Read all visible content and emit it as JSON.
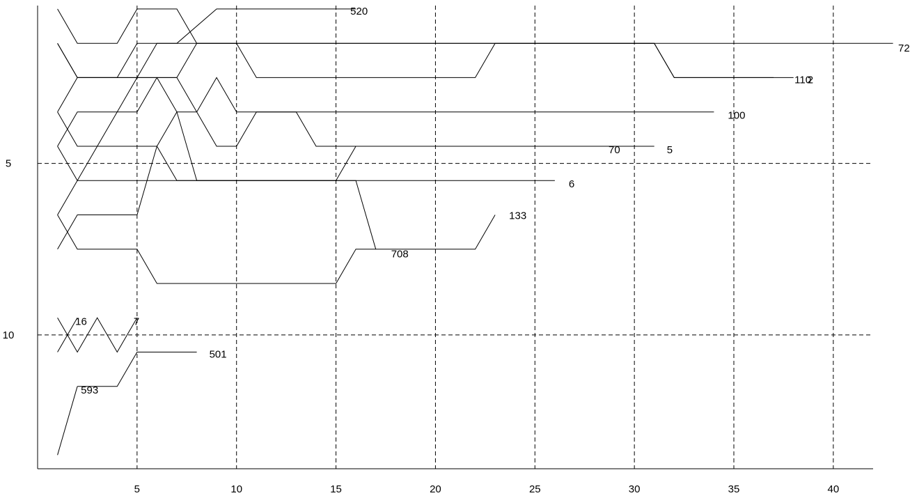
{
  "chart_data": {
    "type": "line",
    "title": "",
    "xlabel": "",
    "ylabel": "",
    "xlim": [
      0,
      42
    ],
    "ylim": [
      13.9,
      0.4
    ],
    "y_axis_inverted": true,
    "grid": "dashed",
    "x_ticks": [
      5,
      10,
      15,
      20,
      25,
      30,
      35,
      40
    ],
    "x_tick_labels": [
      "5",
      "10",
      "15",
      "20",
      "25",
      "30",
      "35",
      "40"
    ],
    "y_ticks": [
      5,
      10
    ],
    "y_tick_labels": [
      "5",
      "10"
    ],
    "series": [
      {
        "name": "72",
        "x": [
          1,
          2,
          4,
          5,
          7,
          8,
          43
        ],
        "y": [
          0.5,
          1.5,
          1.5,
          0.5,
          0.5,
          1.5,
          1.5
        ]
      },
      {
        "name": "520",
        "x": [
          1,
          2,
          4,
          5,
          7,
          9,
          11,
          13,
          14,
          15,
          16
        ],
        "y": [
          1.5,
          2.5,
          2.5,
          1.5,
          1.5,
          0.5,
          0.5,
          0.5,
          0.5,
          0.5,
          0.5
        ]
      },
      {
        "name": "2",
        "x": [
          1,
          2,
          7,
          8,
          31,
          32,
          38
        ],
        "y": [
          1.5,
          2.5,
          2.5,
          1.5,
          1.5,
          2.5,
          2.5
        ]
      },
      {
        "name": "110",
        "x": [
          1,
          2,
          5,
          6,
          10,
          11,
          22,
          23,
          31,
          32,
          37
        ],
        "y": [
          3.5,
          2.5,
          2.5,
          1.5,
          1.5,
          2.5,
          2.5,
          1.5,
          1.5,
          2.5,
          2.5
        ]
      },
      {
        "name": "100",
        "x": [
          1,
          2,
          4,
          5,
          6,
          7,
          8,
          9,
          10,
          11,
          22,
          23,
          34
        ],
        "y": [
          4.5,
          3.5,
          3.5,
          2.5,
          2.5,
          3.5,
          3.5,
          2.5,
          3.5,
          3.5,
          3.5,
          3.5,
          3.5
        ]
      },
      {
        "name": "5",
        "x": [
          1,
          2,
          3,
          4,
          5,
          6,
          7,
          8,
          9,
          10,
          11,
          13,
          14,
          15,
          16,
          17,
          22,
          23,
          31
        ],
        "y": [
          3.5,
          4.5,
          4.5,
          3.5,
          3.5,
          2.5,
          2.5,
          3.5,
          4.5,
          4.5,
          3.5,
          3.5,
          4.5,
          4.5,
          4.5,
          4.5,
          4.5,
          4.5,
          4.5
        ]
      },
      {
        "name": "70",
        "x": [
          1,
          2,
          3,
          5,
          6,
          7,
          8,
          15,
          16,
          22,
          23,
          28
        ],
        "y": [
          4.5,
          5.5,
          4.5,
          4.5,
          4.5,
          3.5,
          5.5,
          5.5,
          4.5,
          4.5,
          4.5,
          4.5
        ]
      },
      {
        "name": "6",
        "x": [
          1,
          2,
          3,
          5,
          6,
          7,
          15,
          16,
          22,
          23,
          26
        ],
        "y": [
          6.5,
          5.5,
          5.5,
          5.5,
          5.5,
          5.5,
          5.5,
          5.5,
          5.5,
          5.5,
          5.5
        ]
      },
      {
        "name": "708",
        "x": [
          1,
          2,
          5,
          6,
          7,
          8,
          15,
          16,
          17
        ],
        "y": [
          7.5,
          6.5,
          6.5,
          4.5,
          5.5,
          5.5,
          5.5,
          5.5,
          7.5
        ]
      },
      {
        "name": "133",
        "x": [
          1,
          2,
          5,
          6,
          7,
          15,
          16,
          17,
          22,
          23
        ],
        "y": [
          6.5,
          7.5,
          7.5,
          8.5,
          8.5,
          8.5,
          7.5,
          7.5,
          7.5,
          6.5
        ]
      },
      {
        "name": "7",
        "x": [
          1,
          2,
          3,
          4,
          5
        ],
        "y": [
          9.5,
          10.5,
          9.5,
          10.5,
          9.5
        ]
      },
      {
        "name": "501",
        "x": [
          2,
          4,
          5,
          8
        ],
        "y": [
          11.5,
          11.5,
          10.5,
          10.5
        ]
      },
      {
        "name": "16",
        "x": [
          1,
          2
        ],
        "y": [
          10.5,
          9.5
        ]
      },
      {
        "name": "593",
        "x": [
          1,
          2
        ],
        "y": [
          13.5,
          11.5
        ]
      }
    ]
  }
}
